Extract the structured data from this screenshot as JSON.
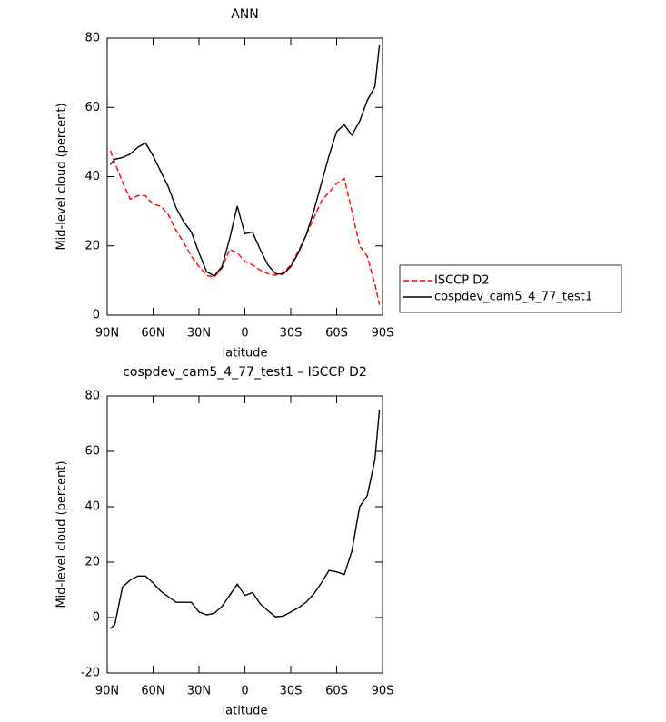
{
  "chart_data": [
    {
      "type": "line",
      "title": "ANN",
      "xlabel": "latitude",
      "ylabel": "Mid-level cloud (percent)",
      "x": [
        88,
        85,
        80,
        75,
        70,
        65,
        60,
        55,
        50,
        45,
        40,
        35,
        30,
        25,
        20,
        15,
        10,
        5,
        0,
        -5,
        -10,
        -15,
        -20,
        -25,
        -30,
        -35,
        -40,
        -45,
        -50,
        -55,
        -60,
        -65,
        -70,
        -75,
        -80,
        -85,
        -88
      ],
      "series": [
        {
          "name": "ISCCP D2",
          "color": "#ff0000",
          "linestyle": "dashed",
          "values": [
            47.5,
            44,
            38.5,
            33.5,
            34.5,
            34.5,
            32,
            31.5,
            29,
            24.5,
            21,
            17,
            14,
            11.5,
            11,
            13.5,
            19,
            18,
            15.5,
            14.5,
            13,
            12,
            11.5,
            12.2,
            14.5,
            18.5,
            23,
            28,
            33,
            35.5,
            38,
            39.5,
            30,
            20,
            17,
            9,
            3
          ]
        },
        {
          "name": "cospdev_cam5_4_77_test1",
          "color": "#000000",
          "linestyle": "solid",
          "values": [
            43.5,
            45,
            45.5,
            46.5,
            48.5,
            49.7,
            46,
            41.5,
            37,
            31,
            27,
            24,
            18,
            12.5,
            11.3,
            14,
            22,
            31.5,
            23.5,
            24,
            19,
            14.5,
            12,
            11.8,
            14,
            18,
            23,
            30,
            38,
            46,
            53,
            55,
            52,
            56,
            62,
            66,
            78
          ]
        }
      ],
      "xlim": [
        90,
        -90
      ],
      "xticks": [
        {
          "value": 90,
          "label": "90N"
        },
        {
          "value": 60,
          "label": "60N"
        },
        {
          "value": 30,
          "label": "30N"
        },
        0,
        {
          "value": -30,
          "label": "30S"
        },
        {
          "value": -60,
          "label": "60S"
        },
        {
          "value": -90,
          "label": "90S"
        }
      ],
      "ylim": [
        0,
        80
      ],
      "yticks": [
        0,
        20,
        40,
        60,
        80
      ],
      "legend": "outside-right"
    },
    {
      "type": "line",
      "title": "cospdev_cam5_4_77_test1 – ISCCP D2",
      "xlabel": "latitude",
      "ylabel": "Mid-level cloud (percent)",
      "x": [
        88,
        85,
        80,
        75,
        70,
        65,
        60,
        55,
        50,
        45,
        40,
        35,
        30,
        25,
        20,
        15,
        10,
        5,
        0,
        -5,
        -10,
        -15,
        -20,
        -25,
        -30,
        -35,
        -40,
        -45,
        -50,
        -55,
        -60,
        -65,
        -70,
        -75,
        -80,
        -85,
        -88
      ],
      "series": [
        {
          "color": "#000000",
          "linestyle": "solid",
          "values": [
            -4,
            -2.5,
            11,
            13.5,
            15,
            15,
            12.5,
            9.5,
            7.5,
            5.5,
            5.5,
            5.5,
            2,
            1,
            1.5,
            4,
            8,
            12,
            8,
            9,
            5,
            2.5,
            0.3,
            0.5,
            2,
            3.5,
            5.5,
            8.5,
            12.5,
            17,
            16.5,
            15.5,
            24,
            40,
            44,
            57,
            75
          ]
        }
      ],
      "xlim": [
        90,
        -90
      ],
      "xticks": [
        {
          "value": 90,
          "label": "90N"
        },
        {
          "value": 60,
          "label": "60N"
        },
        {
          "value": 30,
          "label": "30N"
        },
        0,
        {
          "value": -30,
          "label": "30S"
        },
        {
          "value": -60,
          "label": "60S"
        },
        {
          "value": -90,
          "label": "90S"
        }
      ],
      "ylim": [
        -20,
        80
      ],
      "yticks": [
        -20,
        0,
        20,
        40,
        60,
        80
      ]
    }
  ]
}
